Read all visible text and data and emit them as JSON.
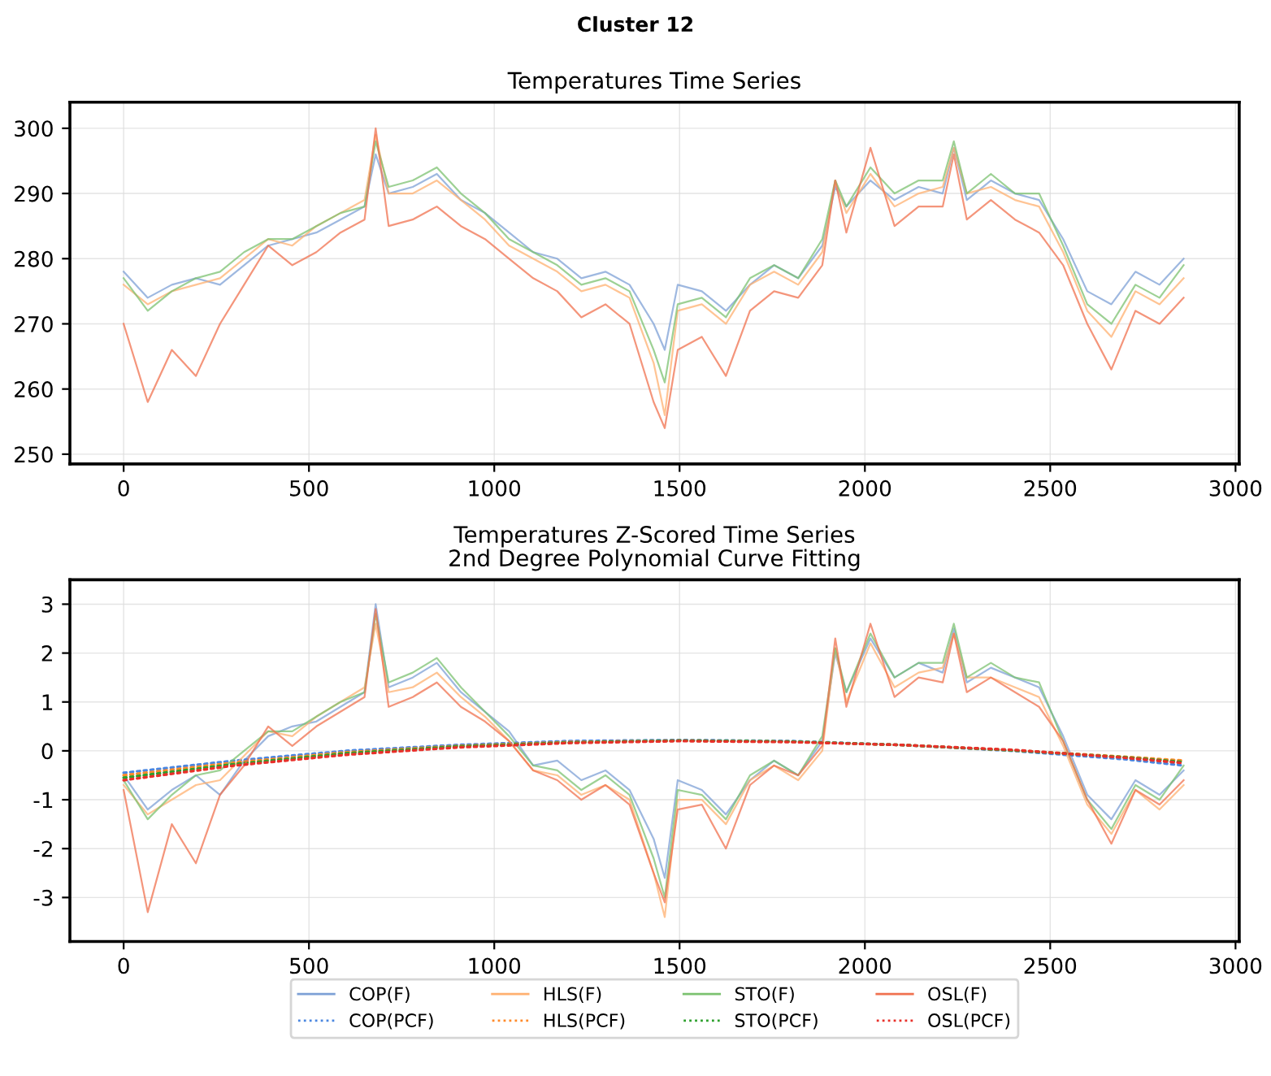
{
  "chart_data": [
    {
      "type": "line",
      "title": "Cluster 12",
      "subtitle": "Temperatures Time Series",
      "grid": true,
      "line_style": "solid",
      "xlim": [
        -145,
        3010
      ],
      "xticks": [
        0,
        500,
        1000,
        1500,
        2000,
        2500,
        3000
      ],
      "ylim": [
        248.5,
        304
      ],
      "yticks": [
        250,
        260,
        270,
        280,
        290,
        300
      ],
      "x": [
        0,
        65,
        130,
        195,
        260,
        325,
        390,
        455,
        520,
        585,
        650,
        680,
        715,
        780,
        845,
        910,
        975,
        1040,
        1105,
        1170,
        1235,
        1300,
        1365,
        1430,
        1460,
        1495,
        1560,
        1625,
        1690,
        1755,
        1820,
        1885,
        1920,
        1950,
        2015,
        2080,
        2145,
        2210,
        2240,
        2275,
        2340,
        2405,
        2470,
        2535,
        2600,
        2665,
        2730,
        2795,
        2860
      ],
      "series": [
        {
          "color": "#7da0d6",
          "values": [
            278,
            274,
            276,
            277,
            276,
            279,
            282,
            283,
            284,
            286,
            288,
            296,
            290,
            291,
            293,
            289,
            287,
            284,
            281,
            280,
            277,
            278,
            276,
            270,
            266,
            276,
            275,
            272,
            276,
            279,
            277,
            282,
            291,
            288,
            292,
            289,
            291,
            290,
            297,
            289,
            292,
            290,
            289,
            283,
            275,
            273,
            278,
            276,
            280
          ]
        },
        {
          "color": "#ffb070",
          "values": [
            276,
            273,
            275,
            276,
            277,
            280,
            283,
            282,
            285,
            287,
            289,
            299,
            290,
            290,
            292,
            289,
            286,
            282,
            280,
            278,
            275,
            276,
            274,
            264,
            256,
            272,
            273,
            270,
            276,
            278,
            276,
            281,
            292,
            287,
            293,
            288,
            290,
            291,
            297,
            290,
            291,
            289,
            288,
            281,
            272,
            268,
            275,
            273,
            277
          ]
        },
        {
          "color": "#7cc270",
          "values": [
            277,
            272,
            275,
            277,
            278,
            281,
            283,
            283,
            285,
            287,
            288,
            298,
            291,
            292,
            294,
            290,
            287,
            283,
            281,
            279,
            276,
            277,
            275,
            266,
            261,
            273,
            274,
            271,
            277,
            279,
            277,
            283,
            292,
            288,
            294,
            290,
            292,
            292,
            298,
            290,
            293,
            290,
            290,
            282,
            273,
            270,
            276,
            274,
            279
          ]
        },
        {
          "color": "#f0714f",
          "values": [
            270,
            258,
            266,
            262,
            270,
            276,
            282,
            279,
            281,
            284,
            286,
            300,
            285,
            286,
            288,
            285,
            283,
            280,
            277,
            275,
            271,
            273,
            270,
            258,
            254,
            266,
            268,
            262,
            272,
            275,
            274,
            279,
            292,
            284,
            297,
            285,
            288,
            288,
            296,
            286,
            289,
            286,
            284,
            279,
            270,
            263,
            272,
            270,
            274
          ]
        }
      ]
    },
    {
      "type": "line",
      "title": "Temperatures Z-Scored Time Series\n2nd Degree Polynomial Curve Fitting",
      "grid": true,
      "legend": "bottom",
      "xlim": [
        -145,
        3010
      ],
      "xticks": [
        0,
        500,
        1000,
        1500,
        2000,
        2500,
        3000
      ],
      "ylim": [
        -3.9,
        3.5
      ],
      "yticks": [
        -3,
        -2,
        -1,
        0,
        1,
        2,
        3
      ],
      "x": [
        0,
        65,
        130,
        195,
        260,
        325,
        390,
        455,
        520,
        585,
        650,
        680,
        715,
        780,
        845,
        910,
        975,
        1040,
        1105,
        1170,
        1235,
        1300,
        1365,
        1430,
        1460,
        1495,
        1560,
        1625,
        1690,
        1755,
        1820,
        1885,
        1920,
        1950,
        2015,
        2080,
        2145,
        2210,
        2240,
        2275,
        2340,
        2405,
        2470,
        2535,
        2600,
        2665,
        2730,
        2795,
        2860
      ],
      "series": [
        {
          "name": "COP(F)",
          "color": "#7da0d6",
          "line_style": "solid",
          "values": [
            -0.5,
            -1.2,
            -0.8,
            -0.5,
            -0.9,
            -0.2,
            0.3,
            0.5,
            0.6,
            0.9,
            1.2,
            3.0,
            1.3,
            1.5,
            1.8,
            1.2,
            0.8,
            0.4,
            -0.3,
            -0.2,
            -0.6,
            -0.4,
            -0.8,
            -1.8,
            -2.6,
            -0.6,
            -0.8,
            -1.3,
            -0.6,
            -0.2,
            -0.5,
            0.2,
            2.0,
            1.2,
            2.3,
            1.5,
            1.8,
            1.6,
            2.5,
            1.4,
            1.7,
            1.5,
            1.3,
            0.3,
            -0.9,
            -1.4,
            -0.6,
            -0.9,
            -0.4
          ]
        },
        {
          "name": "COP(PCF)",
          "color": "#4a86e0",
          "line_style": "dotted",
          "x": [
            0,
            300,
            600,
            900,
            1200,
            1500,
            1800,
            2100,
            2400,
            2700,
            2860
          ],
          "values": [
            -0.45,
            -0.2,
            0.0,
            0.12,
            0.2,
            0.22,
            0.2,
            0.12,
            0.0,
            -0.17,
            -0.3
          ]
        },
        {
          "name": "HLS(F)",
          "color": "#ffb070",
          "line_style": "solid",
          "values": [
            -0.7,
            -1.3,
            -1.0,
            -0.7,
            -0.6,
            -0.1,
            0.4,
            0.3,
            0.7,
            1.0,
            1.3,
            2.6,
            1.2,
            1.3,
            1.6,
            1.1,
            0.7,
            0.2,
            -0.4,
            -0.5,
            -0.9,
            -0.7,
            -1.0,
            -2.5,
            -3.4,
            -1.0,
            -1.0,
            -1.5,
            -0.6,
            -0.3,
            -0.6,
            0.0,
            2.1,
            1.0,
            2.2,
            1.3,
            1.6,
            1.7,
            2.4,
            1.5,
            1.5,
            1.3,
            1.1,
            0.1,
            -1.1,
            -1.7,
            -0.8,
            -1.2,
            -0.7
          ]
        },
        {
          "name": "HLS(PCF)",
          "color": "#ff8a2a",
          "line_style": "dotted",
          "x": [
            0,
            300,
            600,
            900,
            1200,
            1500,
            1800,
            2100,
            2400,
            2700,
            2860
          ],
          "values": [
            -0.5,
            -0.24,
            -0.03,
            0.1,
            0.18,
            0.21,
            0.19,
            0.12,
            0.01,
            -0.12,
            -0.2
          ]
        },
        {
          "name": "STO(F)",
          "color": "#7cc270",
          "line_style": "solid",
          "values": [
            -0.6,
            -1.4,
            -0.9,
            -0.5,
            -0.4,
            0.0,
            0.4,
            0.4,
            0.7,
            1.0,
            1.2,
            2.8,
            1.4,
            1.6,
            1.9,
            1.3,
            0.8,
            0.3,
            -0.3,
            -0.4,
            -0.8,
            -0.5,
            -0.9,
            -2.2,
            -3.0,
            -0.8,
            -0.9,
            -1.4,
            -0.5,
            -0.2,
            -0.5,
            0.3,
            2.1,
            1.2,
            2.4,
            1.5,
            1.8,
            1.8,
            2.6,
            1.5,
            1.8,
            1.5,
            1.4,
            0.2,
            -1.0,
            -1.6,
            -0.7,
            -1.0,
            -0.3
          ]
        },
        {
          "name": "STO(PCF)",
          "color": "#2ca02c",
          "line_style": "dotted",
          "x": [
            0,
            300,
            600,
            900,
            1200,
            1500,
            1800,
            2100,
            2400,
            2700,
            2860
          ],
          "values": [
            -0.55,
            -0.27,
            -0.05,
            0.09,
            0.17,
            0.21,
            0.19,
            0.12,
            0.01,
            -0.13,
            -0.23
          ]
        },
        {
          "name": "OSL(F)",
          "color": "#f0714f",
          "line_style": "solid",
          "values": [
            -0.8,
            -3.3,
            -1.5,
            -2.3,
            -0.9,
            -0.3,
            0.5,
            0.1,
            0.5,
            0.8,
            1.1,
            2.9,
            0.9,
            1.1,
            1.4,
            0.9,
            0.6,
            0.2,
            -0.4,
            -0.6,
            -1.0,
            -0.7,
            -1.1,
            -2.5,
            -3.1,
            -1.2,
            -1.1,
            -2.0,
            -0.7,
            -0.3,
            -0.5,
            0.1,
            2.3,
            0.9,
            2.6,
            1.1,
            1.5,
            1.4,
            2.4,
            1.2,
            1.5,
            1.2,
            0.9,
            0.2,
            -1.0,
            -1.9,
            -0.8,
            -1.1,
            -0.6
          ]
        },
        {
          "name": "OSL(PCF)",
          "color": "#e8302a",
          "line_style": "dotted",
          "x": [
            0,
            300,
            600,
            900,
            1200,
            1500,
            1800,
            2100,
            2400,
            2700,
            2860
          ],
          "values": [
            -0.6,
            -0.3,
            -0.08,
            0.07,
            0.16,
            0.2,
            0.18,
            0.12,
            0.02,
            -0.14,
            -0.25
          ]
        }
      ]
    }
  ]
}
